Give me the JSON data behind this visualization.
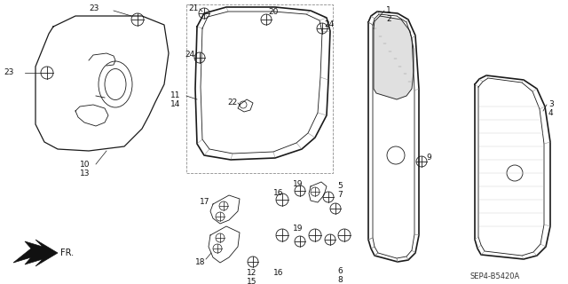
{
  "bg_color": "#ffffff",
  "diagram_code": "SEP4-B5420A",
  "col": "#1a1a1a",
  "lw_thin": 0.6,
  "lw_med": 0.9,
  "lw_thick": 1.2
}
